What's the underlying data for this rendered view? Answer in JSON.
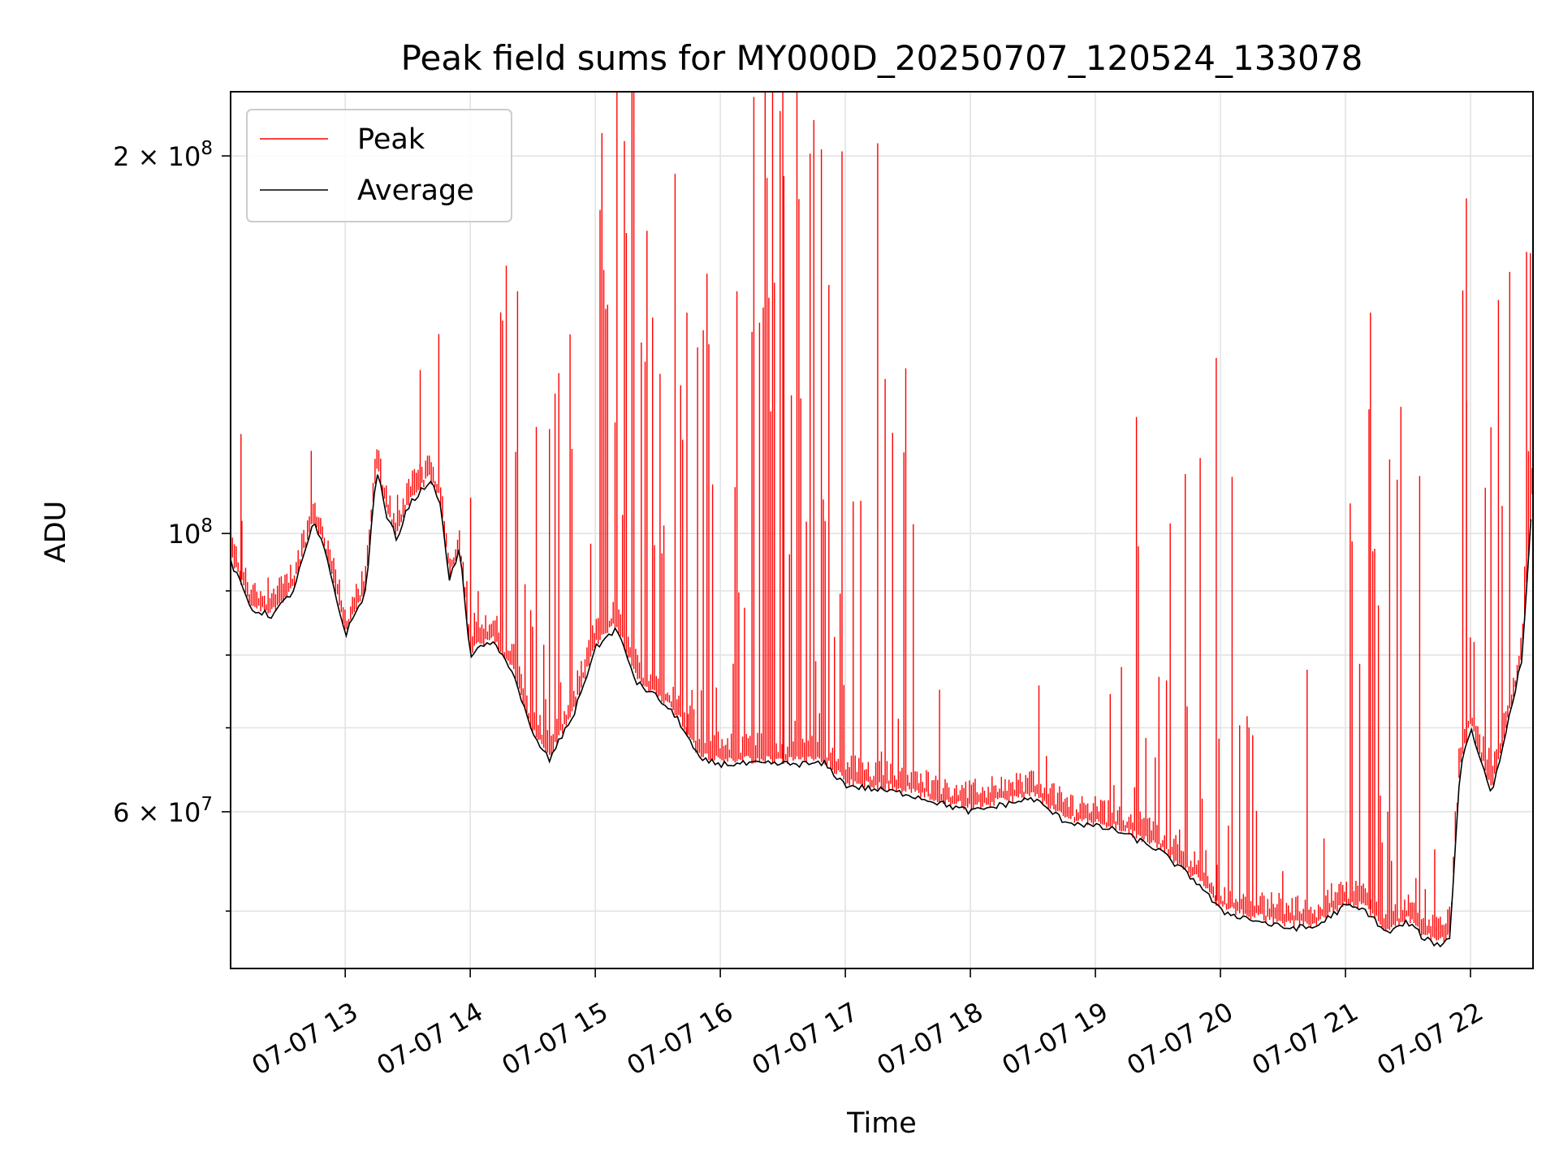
{
  "chart_data": {
    "type": "line",
    "title": "Peak field sums for MY000D_20250707_120524_133078",
    "xlabel": "Time",
    "ylabel": "ADU",
    "yscale": "log",
    "grid": true,
    "legend_position": "top-left",
    "xlim": [
      "07-07 12:05",
      "07-07 22:30"
    ],
    "ylim": [
      45000000,
      225000000
    ],
    "x_ticks": [
      "07-07 13",
      "07-07 14",
      "07-07 15",
      "07-07 16",
      "07-07 17",
      "07-07 18",
      "07-07 19",
      "07-07 20",
      "07-07 21",
      "07-07 22"
    ],
    "y_ticks": [
      {
        "label_main": "2 × 10",
        "label_exp": "8",
        "value": 200000000
      },
      {
        "label_main": "10",
        "label_exp": "8",
        "value": 100000000
      },
      {
        "label_main": "6 × 10",
        "label_exp": "7",
        "value": 60000000
      }
    ],
    "y_minor_ticks": [
      50000000,
      70000000,
      80000000,
      90000000
    ],
    "series": [
      {
        "name": "Average",
        "color": "#000000",
        "points": [
          [
            "07-07 12:05",
            95000000
          ],
          [
            "07-07 12:10",
            91000000
          ],
          [
            "07-07 12:15",
            87000000
          ],
          [
            "07-07 12:25",
            86000000
          ],
          [
            "07-07 12:35",
            90000000
          ],
          [
            "07-07 12:45",
            102000000
          ],
          [
            "07-07 12:50",
            97000000
          ],
          [
            "07-07 12:55",
            90000000
          ],
          [
            "07-07 13:00",
            83000000
          ],
          [
            "07-07 13:10",
            90000000
          ],
          [
            "07-07 13:15",
            113000000
          ],
          [
            "07-07 13:20",
            103000000
          ],
          [
            "07-07 13:25",
            99000000
          ],
          [
            "07-07 13:30",
            105000000
          ],
          [
            "07-07 13:40",
            110000000
          ],
          [
            "07-07 13:45",
            107000000
          ],
          [
            "07-07 13:50",
            92000000
          ],
          [
            "07-07 13:55",
            97000000
          ],
          [
            "07-07 14:00",
            80000000
          ],
          [
            "07-07 14:10",
            82000000
          ],
          [
            "07-07 14:20",
            78000000
          ],
          [
            "07-07 14:30",
            69000000
          ],
          [
            "07-07 14:38",
            66000000
          ],
          [
            "07-07 14:50",
            72000000
          ],
          [
            "07-07 15:00",
            81000000
          ],
          [
            "07-07 15:10",
            84000000
          ],
          [
            "07-07 15:20",
            76000000
          ],
          [
            "07-07 15:30",
            74000000
          ],
          [
            "07-07 15:40",
            71000000
          ],
          [
            "07-07 15:50",
            66000000
          ],
          [
            "07-07 16:00",
            65500000
          ],
          [
            "07-07 16:30",
            65500000
          ],
          [
            "07-07 16:50",
            65500000
          ],
          [
            "07-07 17:00",
            63000000
          ],
          [
            "07-07 17:30",
            62000000
          ],
          [
            "07-07 18:00",
            60000000
          ],
          [
            "07-07 18:30",
            61500000
          ],
          [
            "07-07 18:45",
            59000000
          ],
          [
            "07-07 19:10",
            58000000
          ],
          [
            "07-07 19:30",
            56000000
          ],
          [
            "07-07 19:50",
            52500000
          ],
          [
            "07-07 20:00",
            50000000
          ],
          [
            "07-07 20:30",
            48500000
          ],
          [
            "07-07 20:45",
            48500000
          ],
          [
            "07-07 21:00",
            50500000
          ],
          [
            "07-07 21:10",
            50000000
          ],
          [
            "07-07 21:20",
            48000000
          ],
          [
            "07-07 21:30",
            49000000
          ],
          [
            "07-07 21:38",
            47500000
          ],
          [
            "07-07 21:45",
            47000000
          ],
          [
            "07-07 21:50",
            47500000
          ],
          [
            "07-07 21:55",
            65000000
          ],
          [
            "07-07 22:00",
            70000000
          ],
          [
            "07-07 22:10",
            62000000
          ],
          [
            "07-07 22:20",
            73000000
          ],
          [
            "07-07 22:25",
            80000000
          ],
          [
            "07-07 22:30",
            110000000
          ]
        ]
      },
      {
        "name": "Peak",
        "color": "#ff0000",
        "note_values": [
          120000000,
          135000000,
          225000000,
          185000000,
          150000000,
          150000000,
          138000000
        ]
      }
    ]
  }
}
